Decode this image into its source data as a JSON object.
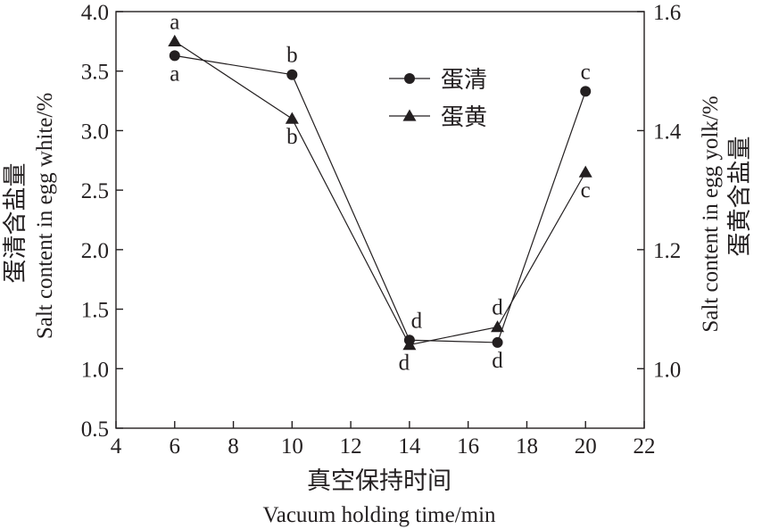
{
  "chart_data": {
    "type": "line",
    "x": [
      6,
      10,
      14,
      17,
      20
    ],
    "xlim": [
      4,
      22
    ],
    "xticks": [
      "4",
      "6",
      "8",
      "10",
      "12",
      "14",
      "16",
      "18",
      "20",
      "22"
    ],
    "xlabel_cn": "真空保持时间",
    "xlabel_en": "Vacuum holding time/min",
    "y_left": {
      "lim": [
        0.5,
        4.0
      ],
      "ticks": [
        "0.5",
        "1.0",
        "1.5",
        "2.0",
        "2.5",
        "3.0",
        "3.5",
        "4.0"
      ],
      "label_cn": "蛋清含盐量",
      "label_en": "Salt content in egg white/%"
    },
    "y_right": {
      "lim": [
        0.9,
        1.6
      ],
      "ticks": [
        "1.0",
        "1.2",
        "1.4",
        "1.6"
      ],
      "label_en": "Salt content in egg yolk/%",
      "label_cn": "蛋黄含盐量"
    },
    "series": [
      {
        "name": "蛋清",
        "axis": "left",
        "marker": "circle",
        "values": [
          3.63,
          3.47,
          1.24,
          1.22,
          3.33
        ],
        "significance": [
          "a",
          "b",
          "d",
          "d",
          "c"
        ]
      },
      {
        "name": "蛋黄",
        "axis": "right",
        "marker": "triangle",
        "values": [
          1.55,
          1.42,
          1.04,
          1.07,
          1.33
        ],
        "significance": [
          "a",
          "b",
          "d",
          "d",
          "c"
        ]
      }
    ],
    "legend": "upper-right",
    "grid": false,
    "colors": {
      "line": "#231f20",
      "marker": "#231f20"
    }
  }
}
